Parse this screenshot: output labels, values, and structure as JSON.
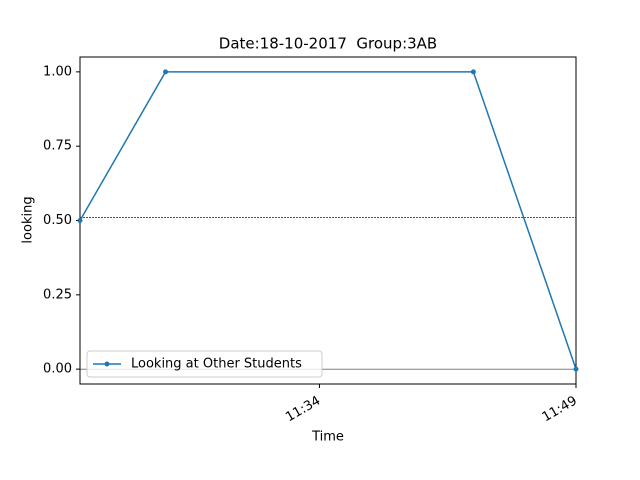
{
  "chart_data": {
    "type": "line",
    "title": "Date:18-10-2017  Group:3AB",
    "x_label": "Time",
    "y_label": "looking",
    "x": [
      "11:20",
      "11:25",
      "11:43",
      "11:49"
    ],
    "series": [
      {
        "name": "Looking at Other Students",
        "color": "#1f77b4",
        "values": [
          0.5,
          1,
          1,
          0
        ]
      }
    ],
    "xlim": [
      "11:20",
      "11:49"
    ],
    "xticks": [
      "11:34",
      "11:49"
    ],
    "ylim": [
      -0.05,
      1.05
    ],
    "yticks": [
      {
        "value": 0,
        "label": "0.00"
      },
      {
        "value": 0.25,
        "label": "0.25"
      },
      {
        "value": 0.5,
        "label": "0.50"
      },
      {
        "value": 0.75,
        "label": "0.75"
      },
      {
        "value": 1,
        "label": "1.00"
      }
    ],
    "hlines": [
      {
        "value": 0.51,
        "color": "#0000ff",
        "style": "dotted"
      },
      {
        "value": 0,
        "color": "#000000",
        "style": "solid"
      }
    ],
    "legend": "lower left"
  }
}
